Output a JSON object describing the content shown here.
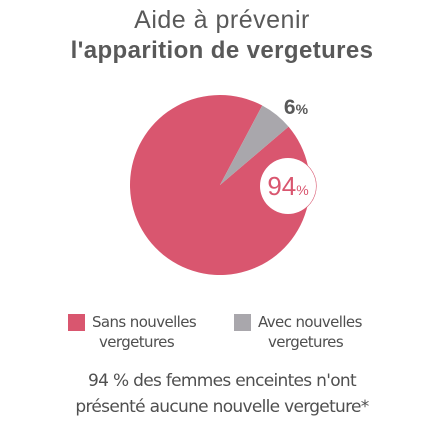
{
  "title": {
    "line1": "Aide à prévenir",
    "line2": "l'apparition de vergetures"
  },
  "chart_data": {
    "type": "pie",
    "title": "Aide à prévenir l'apparition de vergetures",
    "slices": [
      {
        "label_line1": "Sans nouvelles",
        "label_line2": "vergetures",
        "value": 94,
        "display": "94%",
        "color": "#d9566f"
      },
      {
        "label_line1": "Avec nouvelles",
        "label_line2": "vergetures",
        "value": 6,
        "display": "6%",
        "color": "#a9a7ac"
      }
    ],
    "legend_placement": "bottom"
  },
  "colors": {
    "title": "#595959",
    "text": "#4f4f4f",
    "callout_ring": "#d9566f"
  },
  "note": {
    "line1": "94 % des femmes enceintes n'ont",
    "line2": "présenté aucune nouvelle vergeture*"
  }
}
